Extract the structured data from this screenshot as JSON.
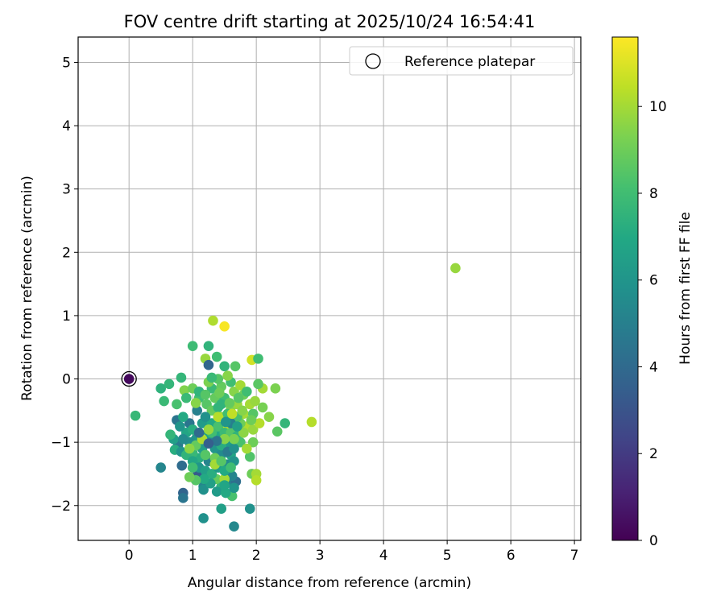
{
  "chart_data": {
    "type": "scatter",
    "title": "FOV centre drift starting at 2025/10/24 16:54:41",
    "xlabel": "Angular distance from reference (arcmin)",
    "ylabel": "Rotation from reference (arcmin)",
    "xlim": [
      -0.8,
      7.1
    ],
    "ylim": [
      -2.55,
      5.4
    ],
    "x_ticks": [
      0,
      1,
      2,
      3,
      4,
      5,
      6,
      7
    ],
    "y_ticks": [
      -2,
      -1,
      0,
      1,
      2,
      3,
      4,
      5
    ],
    "grid": true,
    "legend": {
      "placement": "top-right",
      "entries": [
        "Reference platepar"
      ]
    },
    "colorbar": {
      "label": "Hours from first FF file",
      "range": [
        0,
        11.6
      ],
      "ticks": [
        0,
        2,
        4,
        6,
        8,
        10
      ],
      "colormap": "viridis"
    },
    "reference_point": {
      "x": 0,
      "y": 0
    },
    "points": [
      [
        0,
        0,
        0.3
      ],
      [
        5.13,
        1.75,
        9.8
      ],
      [
        1.5,
        0.83,
        11.5
      ],
      [
        1.32,
        0.92,
        10.2
      ],
      [
        1.93,
        0.3,
        10.8
      ],
      [
        2.03,
        0.32,
        8.0
      ],
      [
        1.0,
        0.52,
        7.9
      ],
      [
        1.25,
        0.52,
        7.5
      ],
      [
        1.38,
        0.35,
        8.0
      ],
      [
        1.2,
        0.32,
        9.8
      ],
      [
        1.25,
        0.22,
        3.8
      ],
      [
        1.5,
        0.2,
        7.5
      ],
      [
        1.67,
        0.2,
        8.5
      ],
      [
        2.87,
        -0.68,
        10.3
      ],
      [
        0.1,
        -0.58,
        7.7
      ],
      [
        0.5,
        -0.15,
        7.4
      ],
      [
        0.55,
        -0.35,
        7.8
      ],
      [
        0.63,
        -0.08,
        7.6
      ],
      [
        0.82,
        0.02,
        7.6
      ],
      [
        0.87,
        -0.18,
        9.4
      ],
      [
        2.45,
        -0.7,
        7.6
      ],
      [
        2.33,
        -0.83,
        8.6
      ],
      [
        2.3,
        -0.15,
        9.3
      ],
      [
        2.1,
        -0.15,
        10.0
      ],
      [
        2.2,
        -0.6,
        9.5
      ],
      [
        2.03,
        -0.08,
        8.6
      ],
      [
        0.75,
        -0.65,
        4.5
      ],
      [
        0.77,
        -1.05,
        4.8
      ],
      [
        0.83,
        -1.37,
        4.1
      ],
      [
        0.85,
        -1.8,
        3.7
      ],
      [
        0.85,
        -1.88,
        4.5
      ],
      [
        0.5,
        -1.4,
        5.3
      ],
      [
        1.17,
        -1.7,
        5.3
      ],
      [
        1.17,
        -1.75,
        5.8
      ],
      [
        1.17,
        -2.2,
        5.8
      ],
      [
        1.45,
        -2.05,
        6.5
      ],
      [
        1.65,
        -2.33,
        5.4
      ],
      [
        1.9,
        -2.05,
        5.8
      ],
      [
        1.62,
        -1.85,
        8.2
      ],
      [
        1.62,
        -1.65,
        5.0
      ],
      [
        1.68,
        -1.62,
        4.2
      ],
      [
        1.62,
        -1.53,
        5.2
      ],
      [
        1.45,
        -1.7,
        7.6
      ],
      [
        1.37,
        -1.58,
        8.8
      ],
      [
        1.5,
        -1.58,
        10.0
      ],
      [
        1.93,
        -1.5,
        9.0
      ],
      [
        2.0,
        -1.5,
        10.0
      ],
      [
        2.0,
        -1.6,
        10.3
      ],
      [
        1.9,
        -1.23,
        8.4
      ],
      [
        1.95,
        -1.0,
        9.0
      ],
      [
        1.08,
        -1.5,
        3.3
      ],
      [
        1.1,
        -1.25,
        7.2
      ],
      [
        1.0,
        -1.17,
        7.7
      ],
      [
        0.95,
        -0.7,
        4.5
      ],
      [
        1.07,
        -0.5,
        5.0
      ],
      [
        1.1,
        -0.3,
        8.0
      ],
      [
        1.22,
        -0.4,
        8.5
      ],
      [
        1.3,
        -0.5,
        8.8
      ],
      [
        1.45,
        -0.6,
        9.5
      ],
      [
        1.5,
        -0.78,
        10.5
      ],
      [
        1.6,
        -0.45,
        9.3
      ],
      [
        1.7,
        -0.4,
        9.8
      ],
      [
        1.8,
        -0.55,
        10.0
      ],
      [
        1.85,
        -0.75,
        10.2
      ],
      [
        1.95,
        -0.8,
        9.8
      ],
      [
        2.05,
        -0.7,
        10.3
      ],
      [
        1.2,
        -0.9,
        6.5
      ],
      [
        1.3,
        -1.0,
        5.5
      ],
      [
        1.35,
        -1.1,
        6.0
      ],
      [
        1.4,
        -0.9,
        7.0
      ],
      [
        1.45,
        -1.2,
        5.5
      ],
      [
        1.55,
        -1.0,
        6.3
      ],
      [
        1.6,
        -1.2,
        6.8
      ],
      [
        1.55,
        -1.35,
        5.5
      ],
      [
        1.65,
        -1.3,
        6.0
      ],
      [
        1.25,
        -1.3,
        5.2
      ],
      [
        1.15,
        -1.1,
        6.5
      ],
      [
        1.05,
        -0.95,
        6.0
      ],
      [
        0.95,
        -1.0,
        5.7
      ],
      [
        0.9,
        -0.85,
        6.8
      ],
      [
        1.0,
        -0.8,
        7.2
      ],
      [
        1.15,
        -0.7,
        6.3
      ],
      [
        1.3,
        -0.7,
        7.0
      ],
      [
        1.4,
        -0.75,
        8.2
      ],
      [
        1.5,
        -0.85,
        7.8
      ],
      [
        1.6,
        -0.85,
        8.5
      ],
      [
        1.7,
        -0.9,
        7.5
      ],
      [
        1.75,
        -1.0,
        8.2
      ],
      [
        1.75,
        -0.7,
        9.0
      ],
      [
        1.7,
        -0.6,
        8.2
      ],
      [
        1.55,
        -0.55,
        8.0
      ],
      [
        1.4,
        -0.45,
        7.5
      ],
      [
        1.35,
        -0.3,
        8.8
      ],
      [
        1.5,
        -0.3,
        8.0
      ],
      [
        1.65,
        -0.2,
        9.5
      ],
      [
        1.8,
        -0.25,
        9.0
      ],
      [
        1.9,
        -0.4,
        10.0
      ],
      [
        1.95,
        -0.55,
        8.5
      ],
      [
        1.3,
        -0.15,
        7.8
      ],
      [
        1.45,
        -0.12,
        8.8
      ],
      [
        1.6,
        -0.05,
        8.0
      ],
      [
        1.75,
        -0.1,
        10.0
      ],
      [
        1.0,
        -0.15,
        9.0
      ],
      [
        1.1,
        -0.2,
        7.5
      ],
      [
        0.9,
        -0.3,
        7.8
      ],
      [
        1.25,
        -0.05,
        9.3
      ],
      [
        1.4,
        0.0,
        8.5
      ],
      [
        1.55,
        0.05,
        9.5
      ],
      [
        1.3,
        0.02,
        7.8
      ],
      [
        0.75,
        -0.4,
        8.2
      ],
      [
        0.7,
        -0.95,
        6.5
      ],
      [
        0.65,
        -0.88,
        7.6
      ],
      [
        0.72,
        -1.12,
        7.2
      ],
      [
        0.82,
        -1.15,
        6.0
      ],
      [
        0.9,
        -1.2,
        7.5
      ],
      [
        1.0,
        -1.3,
        6.8
      ],
      [
        1.1,
        -1.4,
        6.0
      ],
      [
        1.2,
        -1.45,
        6.5
      ],
      [
        1.3,
        -1.5,
        7.2
      ],
      [
        1.4,
        -1.4,
        6.3
      ],
      [
        1.5,
        -1.45,
        7.0
      ],
      [
        1.6,
        -1.4,
        8.0
      ],
      [
        1.35,
        -1.25,
        9.0
      ],
      [
        1.2,
        -1.2,
        8.5
      ],
      [
        1.05,
        -1.05,
        8.8
      ],
      [
        0.95,
        -1.1,
        9.6
      ],
      [
        1.0,
        -1.4,
        8.0
      ],
      [
        0.85,
        -0.95,
        5.5
      ],
      [
        0.8,
        -0.75,
        6.0
      ],
      [
        0.85,
        -0.6,
        7.0
      ],
      [
        1.2,
        -0.6,
        5.8
      ],
      [
        1.3,
        -0.85,
        8.0
      ],
      [
        1.45,
        -1.05,
        7.2
      ],
      [
        1.55,
        -1.15,
        4.8
      ],
      [
        1.65,
        -1.1,
        5.8
      ],
      [
        1.65,
        -0.95,
        9.3
      ],
      [
        1.8,
        -0.85,
        9.6
      ],
      [
        1.85,
        -1.1,
        10.0
      ],
      [
        1.5,
        -0.95,
        9.5
      ],
      [
        1.4,
        -0.6,
        10.3
      ],
      [
        1.25,
        -0.8,
        9.8
      ],
      [
        1.15,
        -0.95,
        10.2
      ],
      [
        1.35,
        -1.35,
        10.0
      ],
      [
        1.45,
        -1.3,
        8.5
      ],
      [
        1.28,
        -1.65,
        6.5
      ],
      [
        1.38,
        -1.78,
        6.3
      ],
      [
        1.52,
        -1.8,
        7.0
      ],
      [
        1.65,
        -1.72,
        6.0
      ],
      [
        1.5,
        -1.68,
        6.8
      ],
      [
        1.18,
        -1.58,
        7.0
      ],
      [
        1.05,
        -1.6,
        8.5
      ],
      [
        0.95,
        -1.55,
        9.0
      ],
      [
        1.6,
        -0.7,
        5.0
      ],
      [
        1.7,
        -0.75,
        6.5
      ],
      [
        1.52,
        -0.68,
        6.0
      ],
      [
        1.38,
        -0.98,
        4.5
      ],
      [
        1.25,
        -1.02,
        3.5
      ],
      [
        1.1,
        -0.85,
        4.0
      ],
      [
        1.45,
        -0.4,
        7.5
      ],
      [
        1.58,
        -0.38,
        8.8
      ],
      [
        1.72,
        -0.3,
        8.5
      ],
      [
        1.85,
        -0.2,
        8.0
      ],
      [
        1.98,
        -0.35,
        9.8
      ],
      [
        2.1,
        -0.45,
        9.2
      ],
      [
        1.92,
        -0.65,
        9.0
      ],
      [
        1.78,
        -0.5,
        9.5
      ],
      [
        1.62,
        -0.55,
        10.5
      ],
      [
        1.42,
        -0.22,
        9.0
      ],
      [
        1.2,
        -0.25,
        8.5
      ],
      [
        1.05,
        -0.38,
        9.5
      ]
    ]
  }
}
